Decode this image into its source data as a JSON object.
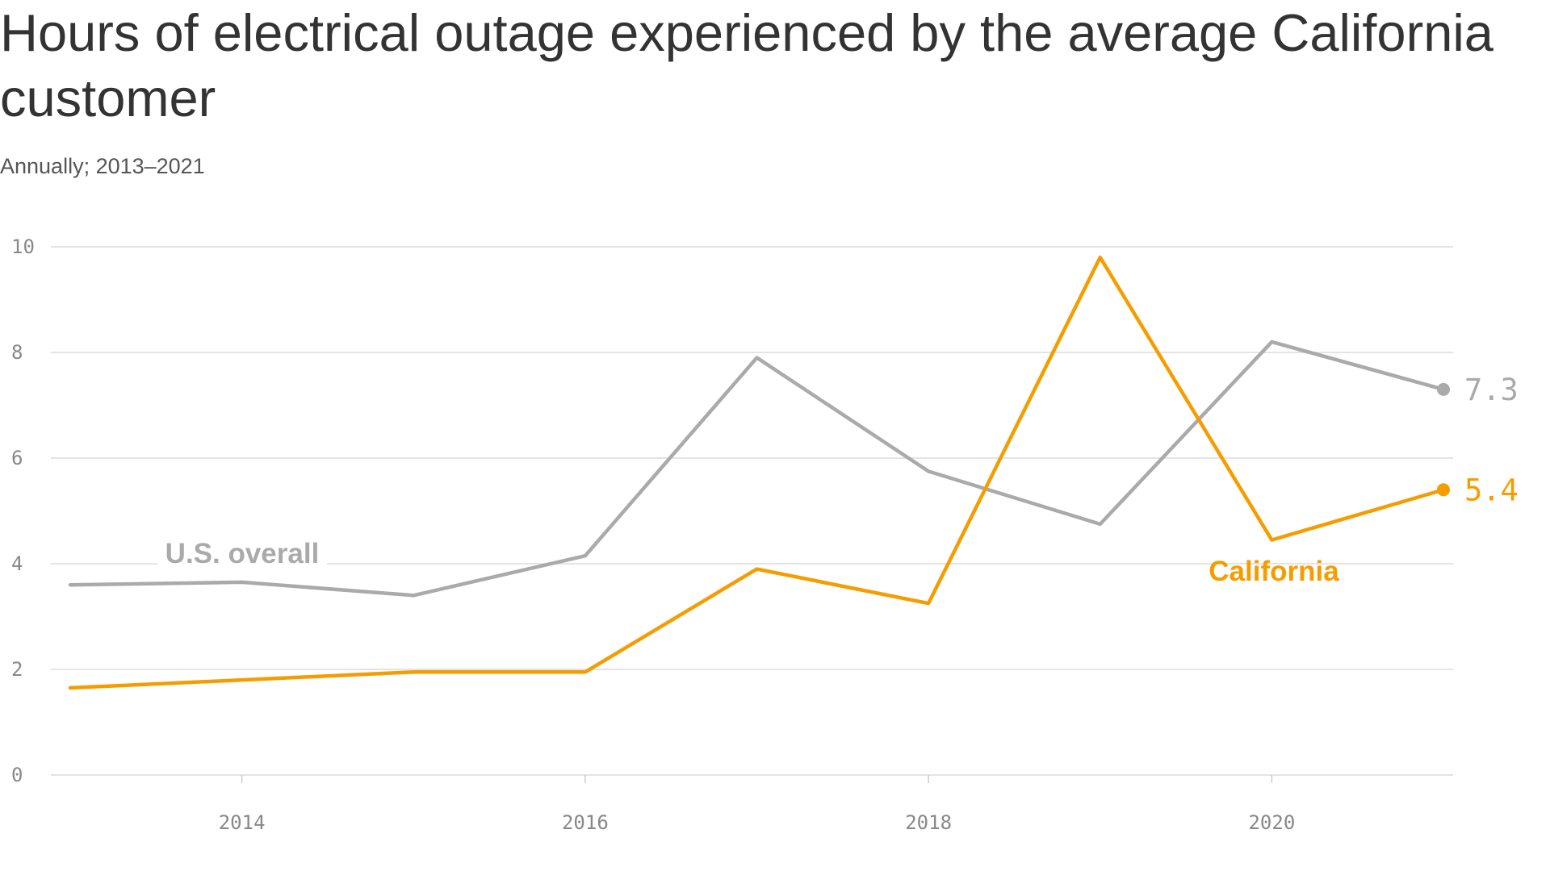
{
  "title": "Hours of electrical outage experienced by the average California customer",
  "subtitle": "Annually; 2013–2021",
  "chart_data": {
    "type": "line",
    "title": "Hours of electrical outage experienced by the average California customer",
    "subtitle": "Annually; 2013–2021",
    "x": [
      2013,
      2014,
      2015,
      2016,
      2017,
      2018,
      2019,
      2020,
      2021
    ],
    "xlim": [
      2013,
      2021
    ],
    "ylim": [
      0,
      10
    ],
    "yticks": [
      "0",
      "2",
      "4",
      "6",
      "8",
      "10"
    ],
    "xticks": [
      "2014",
      "2016",
      "2018",
      "2020"
    ],
    "grid": true,
    "series": [
      {
        "name": "U.S. overall",
        "color": "#aaaaaa",
        "values": [
          3.6,
          3.65,
          3.4,
          4.15,
          7.9,
          5.75,
          4.75,
          8.2,
          7.3
        ],
        "end_label": "7.3"
      },
      {
        "name": "California",
        "color": "#f59d00",
        "values": [
          1.65,
          1.8,
          1.95,
          1.95,
          3.9,
          3.25,
          9.8,
          4.45,
          5.4
        ],
        "end_label": "5.4"
      }
    ]
  }
}
